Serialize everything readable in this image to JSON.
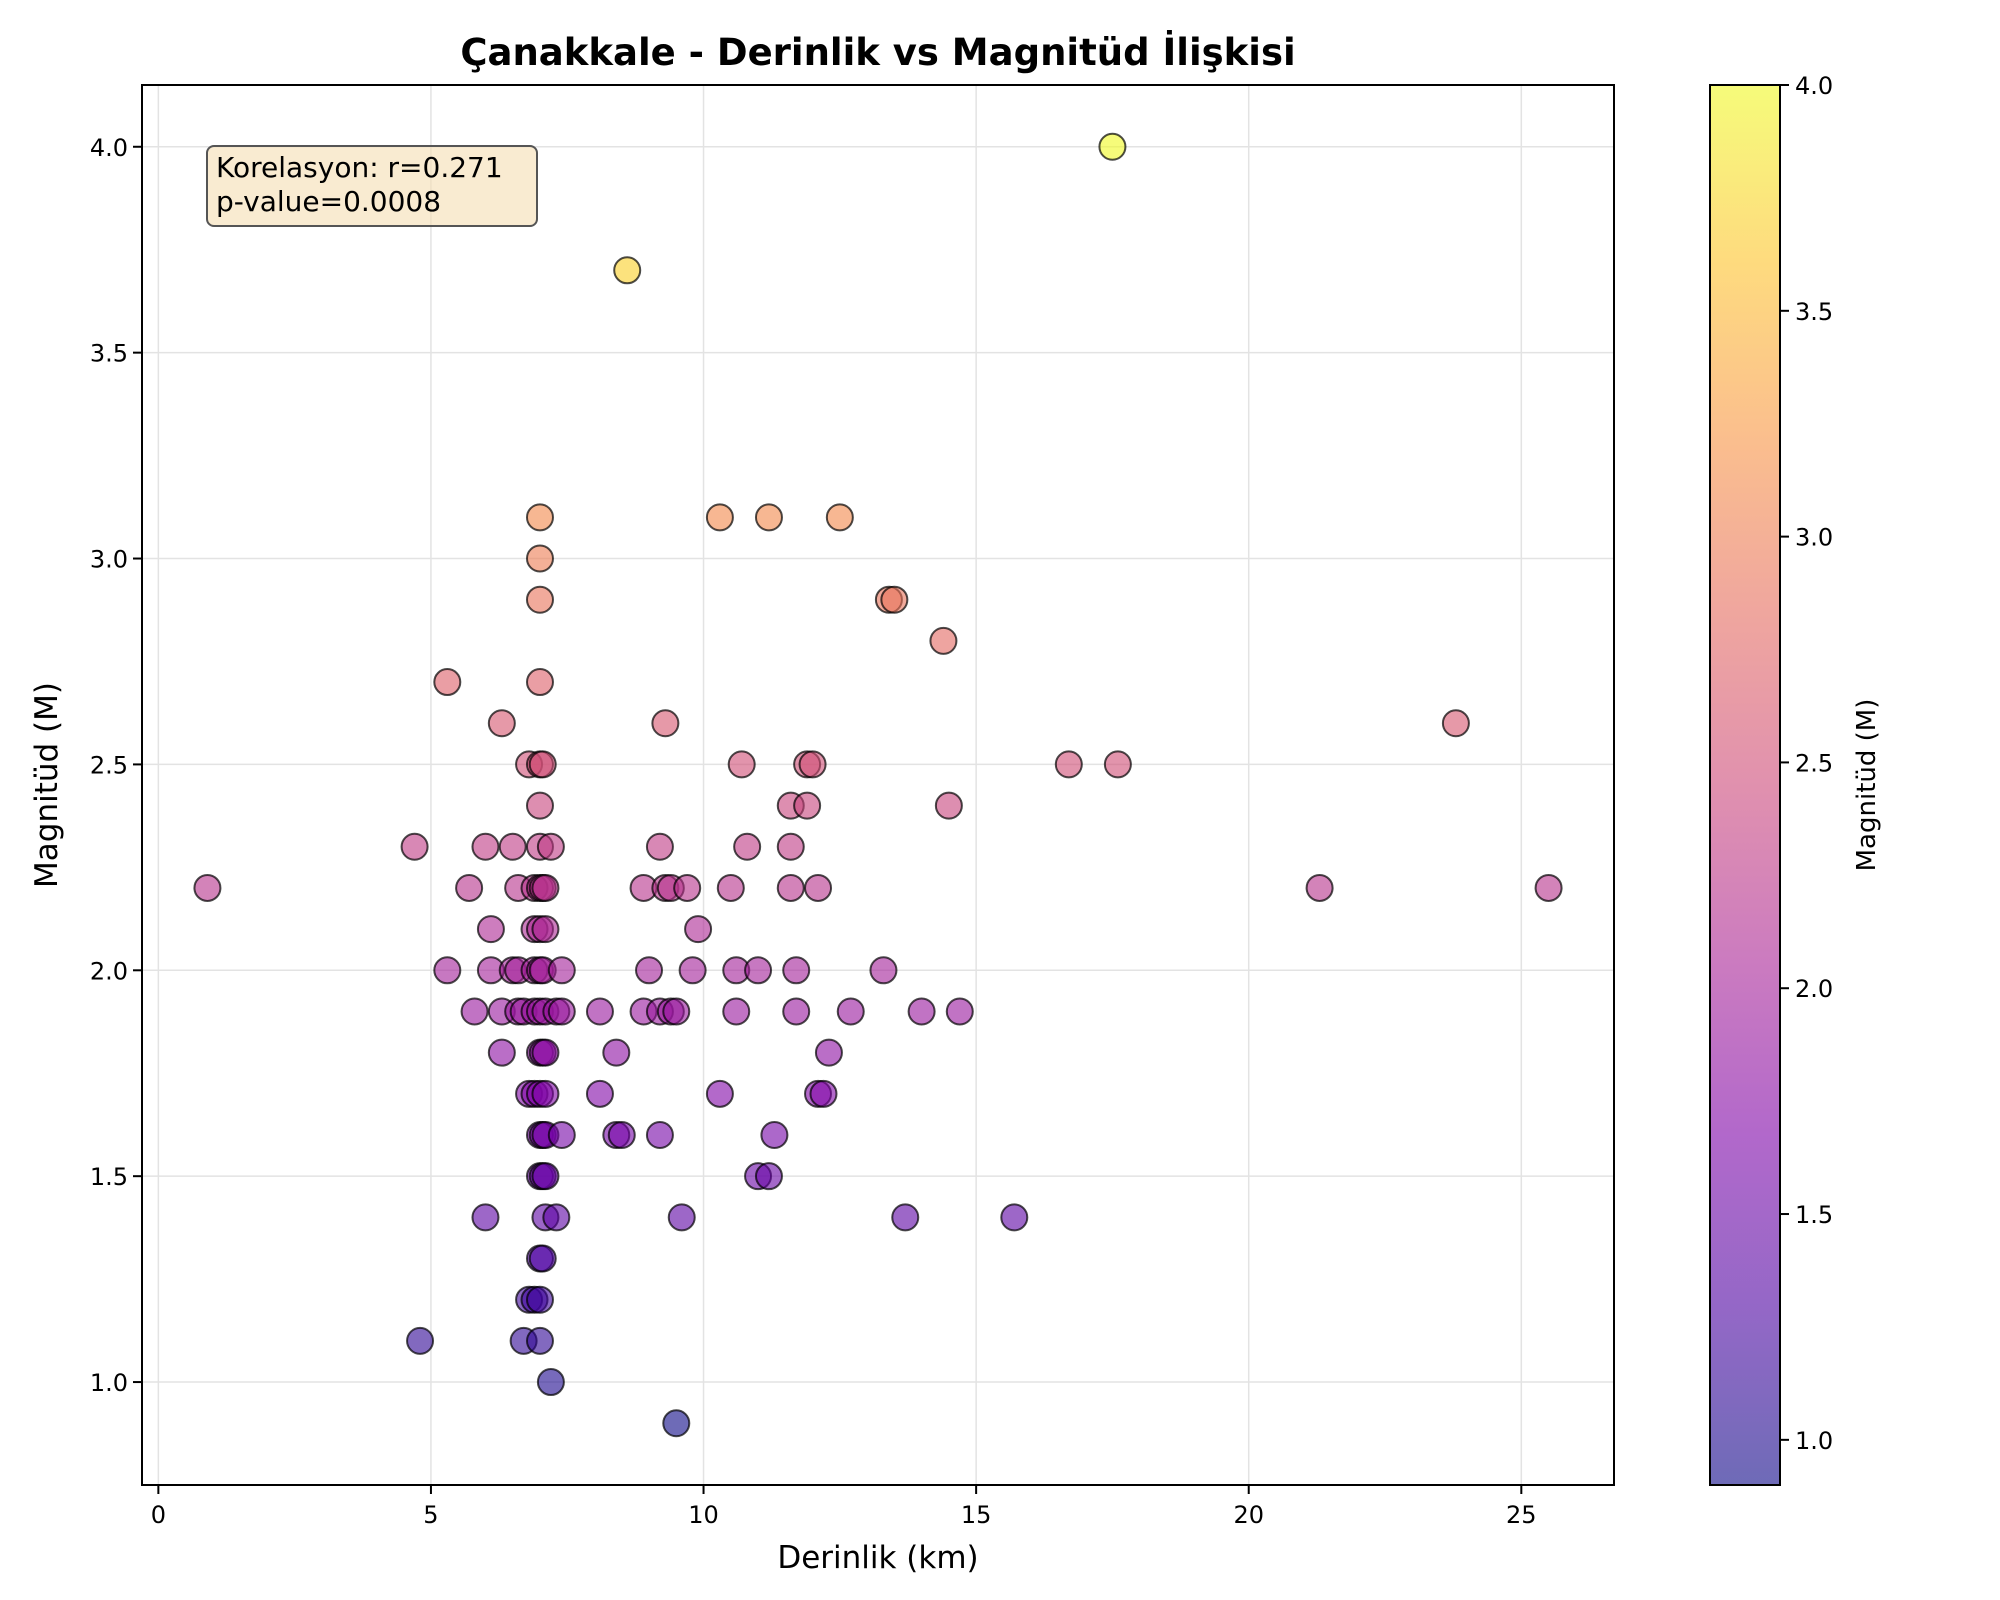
{
  "chart_data": {
    "type": "scatter",
    "title": "Çanakkale - Derinlik vs Magnitüd İlişkisi",
    "xlabel": "Derinlik (km)",
    "ylabel": "Magnitüd (M)",
    "xlim": [
      -0.3,
      26.7
    ],
    "ylim": [
      0.75,
      4.15
    ],
    "xticks": [
      0,
      5,
      10,
      15,
      20,
      25
    ],
    "yticks": [
      1.0,
      1.5,
      2.0,
      2.5,
      3.0,
      3.5,
      4.0
    ],
    "grid": true,
    "colormap": "plasma",
    "colorbar": {
      "label": "Magnitüd (M)",
      "range": [
        0.9,
        4.0
      ],
      "ticks": [
        1.0,
        1.5,
        2.0,
        2.5,
        3.0,
        3.5,
        4.0
      ]
    },
    "annotation": {
      "lines": [
        "Korelasyon: r=0.271",
        "p-value=0.0008"
      ],
      "background": "#f5deb3"
    },
    "points": [
      {
        "x": 0.9,
        "y": 2.2
      },
      {
        "x": 4.7,
        "y": 2.3
      },
      {
        "x": 4.8,
        "y": 1.1
      },
      {
        "x": 5.3,
        "y": 2.7
      },
      {
        "x": 5.3,
        "y": 2.0
      },
      {
        "x": 5.7,
        "y": 2.2
      },
      {
        "x": 5.8,
        "y": 1.9
      },
      {
        "x": 6.0,
        "y": 2.3
      },
      {
        "x": 6.1,
        "y": 2.1
      },
      {
        "x": 6.1,
        "y": 2.0
      },
      {
        "x": 6.0,
        "y": 1.4
      },
      {
        "x": 6.3,
        "y": 2.6
      },
      {
        "x": 6.3,
        "y": 1.9
      },
      {
        "x": 6.3,
        "y": 1.8
      },
      {
        "x": 6.5,
        "y": 2.3
      },
      {
        "x": 6.5,
        "y": 2.0
      },
      {
        "x": 6.6,
        "y": 2.2
      },
      {
        "x": 6.6,
        "y": 2.0
      },
      {
        "x": 6.6,
        "y": 1.9
      },
      {
        "x": 6.7,
        "y": 1.9
      },
      {
        "x": 6.7,
        "y": 1.1
      },
      {
        "x": 6.8,
        "y": 2.5
      },
      {
        "x": 6.8,
        "y": 1.7
      },
      {
        "x": 6.8,
        "y": 1.2
      },
      {
        "x": 6.9,
        "y": 2.2
      },
      {
        "x": 6.9,
        "y": 2.0
      },
      {
        "x": 6.9,
        "y": 1.9
      },
      {
        "x": 6.9,
        "y": 1.7
      },
      {
        "x": 6.9,
        "y": 1.2
      },
      {
        "x": 6.9,
        "y": 2.1
      },
      {
        "x": 7.0,
        "y": 3.1
      },
      {
        "x": 7.0,
        "y": 3.0
      },
      {
        "x": 7.0,
        "y": 2.9
      },
      {
        "x": 7.0,
        "y": 2.7
      },
      {
        "x": 7.0,
        "y": 2.5
      },
      {
        "x": 7.0,
        "y": 2.4
      },
      {
        "x": 7.0,
        "y": 2.3
      },
      {
        "x": 7.0,
        "y": 2.2
      },
      {
        "x": 7.0,
        "y": 2.1
      },
      {
        "x": 7.0,
        "y": 2.0
      },
      {
        "x": 7.0,
        "y": 1.9
      },
      {
        "x": 7.0,
        "y": 1.8
      },
      {
        "x": 7.0,
        "y": 1.7
      },
      {
        "x": 7.0,
        "y": 1.6
      },
      {
        "x": 7.0,
        "y": 1.5
      },
      {
        "x": 7.0,
        "y": 1.3
      },
      {
        "x": 7.0,
        "y": 1.1
      },
      {
        "x": 7.0,
        "y": 1.2
      },
      {
        "x": 7.05,
        "y": 2.5
      },
      {
        "x": 7.05,
        "y": 2.2
      },
      {
        "x": 7.05,
        "y": 2.0
      },
      {
        "x": 7.05,
        "y": 1.8
      },
      {
        "x": 7.05,
        "y": 1.6
      },
      {
        "x": 7.05,
        "y": 1.5
      },
      {
        "x": 7.05,
        "y": 1.3
      },
      {
        "x": 7.1,
        "y": 2.2
      },
      {
        "x": 7.1,
        "y": 2.1
      },
      {
        "x": 7.1,
        "y": 1.9
      },
      {
        "x": 7.1,
        "y": 1.8
      },
      {
        "x": 7.1,
        "y": 1.7
      },
      {
        "x": 7.1,
        "y": 1.6
      },
      {
        "x": 7.1,
        "y": 1.5
      },
      {
        "x": 7.1,
        "y": 1.4
      },
      {
        "x": 7.2,
        "y": 2.3
      },
      {
        "x": 7.2,
        "y": 1.0
      },
      {
        "x": 7.3,
        "y": 1.9
      },
      {
        "x": 7.3,
        "y": 1.4
      },
      {
        "x": 7.4,
        "y": 2.0
      },
      {
        "x": 7.4,
        "y": 1.9
      },
      {
        "x": 7.4,
        "y": 1.6
      },
      {
        "x": 8.1,
        "y": 1.9
      },
      {
        "x": 8.1,
        "y": 1.7
      },
      {
        "x": 8.4,
        "y": 1.8
      },
      {
        "x": 8.4,
        "y": 1.6
      },
      {
        "x": 8.5,
        "y": 1.6
      },
      {
        "x": 8.6,
        "y": 3.7
      },
      {
        "x": 8.9,
        "y": 2.2
      },
      {
        "x": 8.9,
        "y": 1.9
      },
      {
        "x": 9.0,
        "y": 2.0
      },
      {
        "x": 9.2,
        "y": 2.3
      },
      {
        "x": 9.2,
        "y": 1.9
      },
      {
        "x": 9.2,
        "y": 1.6
      },
      {
        "x": 9.3,
        "y": 2.6
      },
      {
        "x": 9.3,
        "y": 2.2
      },
      {
        "x": 9.4,
        "y": 2.2
      },
      {
        "x": 9.4,
        "y": 1.9
      },
      {
        "x": 9.5,
        "y": 1.9
      },
      {
        "x": 9.5,
        "y": 0.9
      },
      {
        "x": 9.6,
        "y": 1.4
      },
      {
        "x": 9.7,
        "y": 2.2
      },
      {
        "x": 9.8,
        "y": 2.0
      },
      {
        "x": 9.9,
        "y": 2.1
      },
      {
        "x": 10.3,
        "y": 3.1
      },
      {
        "x": 10.3,
        "y": 1.7
      },
      {
        "x": 10.5,
        "y": 2.2
      },
      {
        "x": 10.6,
        "y": 2.0
      },
      {
        "x": 10.6,
        "y": 1.9
      },
      {
        "x": 10.7,
        "y": 2.5
      },
      {
        "x": 10.8,
        "y": 2.3
      },
      {
        "x": 11.0,
        "y": 2.0
      },
      {
        "x": 11.0,
        "y": 1.5
      },
      {
        "x": 11.2,
        "y": 3.1
      },
      {
        "x": 11.2,
        "y": 1.5
      },
      {
        "x": 11.3,
        "y": 1.6
      },
      {
        "x": 11.6,
        "y": 2.4
      },
      {
        "x": 11.6,
        "y": 2.3
      },
      {
        "x": 11.6,
        "y": 2.2
      },
      {
        "x": 11.7,
        "y": 2.0
      },
      {
        "x": 11.7,
        "y": 1.9
      },
      {
        "x": 11.9,
        "y": 2.5
      },
      {
        "x": 11.9,
        "y": 2.4
      },
      {
        "x": 12.0,
        "y": 2.5
      },
      {
        "x": 12.1,
        "y": 2.2
      },
      {
        "x": 12.1,
        "y": 1.7
      },
      {
        "x": 12.2,
        "y": 1.7
      },
      {
        "x": 12.3,
        "y": 1.8
      },
      {
        "x": 12.5,
        "y": 3.1
      },
      {
        "x": 12.7,
        "y": 1.9
      },
      {
        "x": 13.3,
        "y": 2.0
      },
      {
        "x": 13.4,
        "y": 2.9
      },
      {
        "x": 13.5,
        "y": 2.9
      },
      {
        "x": 13.7,
        "y": 1.4
      },
      {
        "x": 14.0,
        "y": 1.9
      },
      {
        "x": 14.4,
        "y": 2.8
      },
      {
        "x": 14.5,
        "y": 2.4
      },
      {
        "x": 14.7,
        "y": 1.9
      },
      {
        "x": 15.7,
        "y": 1.4
      },
      {
        "x": 16.7,
        "y": 2.5
      },
      {
        "x": 17.5,
        "y": 4.0
      },
      {
        "x": 17.6,
        "y": 2.5
      },
      {
        "x": 21.3,
        "y": 2.2
      },
      {
        "x": 23.8,
        "y": 2.6
      },
      {
        "x": 25.5,
        "y": 2.2
      }
    ]
  }
}
